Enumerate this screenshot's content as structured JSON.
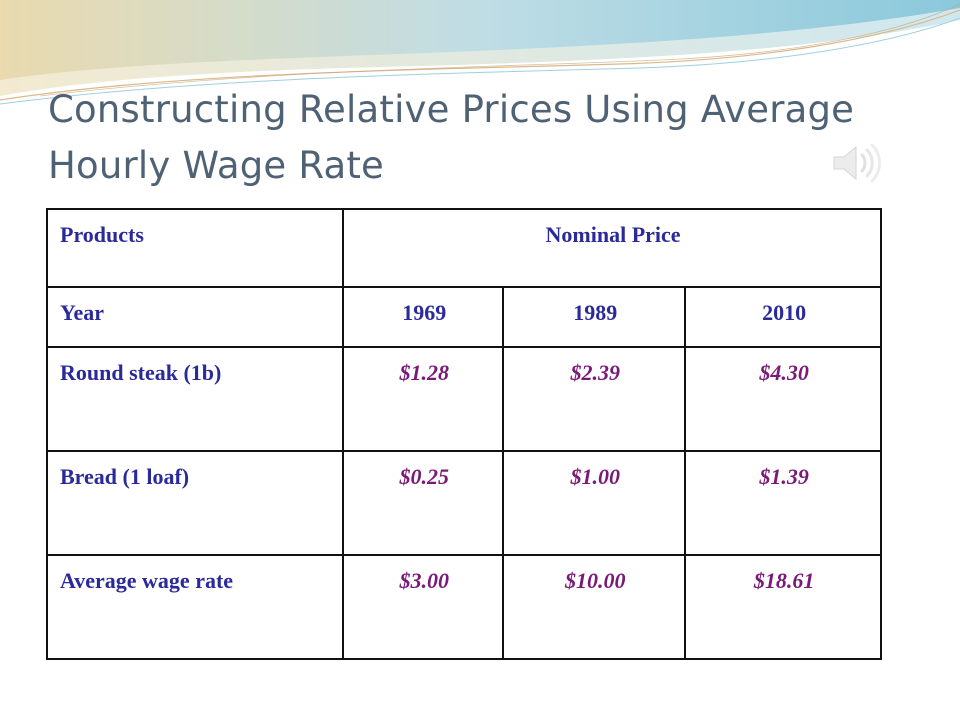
{
  "slide": {
    "title_line1": "Constructing Relative Prices Using  Average",
    "title_line2": "Hourly Wage Rate"
  },
  "icons": {
    "speaker": "speaker-icon"
  },
  "colors": {
    "title": "#4f6275",
    "table_text": "#2a2a9a",
    "price_text": "#7a1a78",
    "border": "#111111"
  },
  "table": {
    "header": {
      "products_label": "Products",
      "nominal_price_label": "Nominal Price"
    },
    "year_row": {
      "label": "Year",
      "years": [
        "1969",
        "1989",
        "2010"
      ]
    },
    "rows": [
      {
        "label": "Round steak (1b)",
        "values": [
          "$1.28",
          "$2.39",
          "$4.30"
        ]
      },
      {
        "label": "Bread (1 loaf)",
        "values": [
          "$0.25",
          "$1.00",
          "$1.39"
        ]
      },
      {
        "label": "Average wage rate",
        "values": [
          "$3.00",
          "$10.00",
          "$18.61"
        ]
      }
    ]
  }
}
